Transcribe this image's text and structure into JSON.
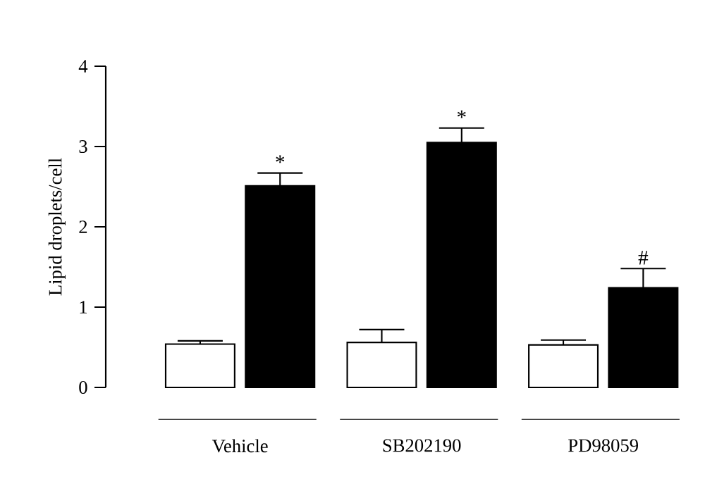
{
  "chart_data": {
    "type": "bar",
    "ylabel": "Lipid droplets/cell",
    "categories": [
      "Vehicle",
      "SB202190",
      "PD98059"
    ],
    "series": [
      {
        "color": "#ffffff",
        "values": [
          0.54,
          0.56,
          0.53
        ],
        "errors": [
          [
            0.54,
            0.58
          ],
          [
            0.56,
            0.72
          ],
          [
            0.53,
            0.59
          ]
        ]
      },
      {
        "color": "#000000",
        "values": [
          2.51,
          3.05,
          1.24
        ],
        "errors": [
          [
            2.51,
            2.67
          ],
          [
            3.05,
            3.23
          ],
          [
            1.24,
            1.48
          ]
        ]
      }
    ],
    "ylim": [
      0,
      4
    ],
    "yticks": [
      0,
      1,
      2,
      3,
      4
    ],
    "grid": false,
    "annotations": [
      "*",
      "*",
      "#"
    ]
  }
}
